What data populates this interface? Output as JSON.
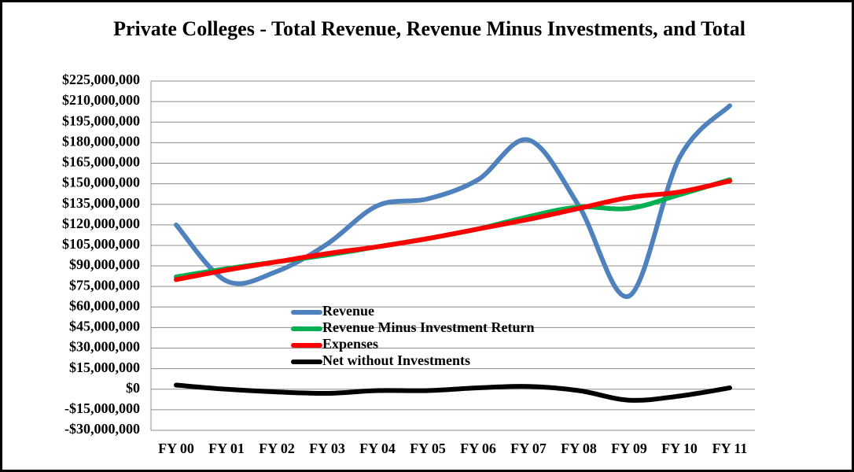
{
  "chart_data": {
    "type": "line",
    "title": "Private Colleges - Total Revenue, Revenue Minus Investments, and Total",
    "categories": [
      "FY 00",
      "FY 01",
      "FY 02",
      "FY 03",
      "FY 04",
      "FY 05",
      "FY 06",
      "FY 07",
      "FY 08",
      "FY 09",
      "FY 10",
      "FY 11"
    ],
    "series": [
      {
        "name": "Revenue",
        "color": "#4f81bd",
        "values": [
          120000000,
          79000000,
          86000000,
          106000000,
          134000000,
          139000000,
          153000000,
          182000000,
          134000000,
          68000000,
          169000000,
          207000000
        ]
      },
      {
        "name": "Revenue Minus Investment Return",
        "color": "#00b050",
        "values": [
          82000000,
          88000000,
          93000000,
          98000000,
          104000000,
          110000000,
          117000000,
          126000000,
          133000000,
          132000000,
          142000000,
          153000000
        ]
      },
      {
        "name": "Expenses",
        "color": "#ff0000",
        "values": [
          80000000,
          87000000,
          93000000,
          99000000,
          104000000,
          110000000,
          117000000,
          124000000,
          132000000,
          140000000,
          144000000,
          152000000
        ]
      },
      {
        "name": "Net without Investments",
        "color": "#000000",
        "values": [
          3000000,
          0,
          -2000000,
          -3000000,
          -1000000,
          -1000000,
          1000000,
          2000000,
          -1000000,
          -8000000,
          -5000000,
          1000000
        ]
      }
    ],
    "ylim": [
      -30000000,
      225000000
    ],
    "yticks": [
      {
        "value": -30000000,
        "label": "-$30,000,000"
      },
      {
        "value": -15000000,
        "label": "-$15,000,000"
      },
      {
        "value": 0,
        "label": "$0"
      },
      {
        "value": 15000000,
        "label": "$15,000,000"
      },
      {
        "value": 30000000,
        "label": "$30,000,000"
      },
      {
        "value": 45000000,
        "label": "$45,000,000"
      },
      {
        "value": 60000000,
        "label": "$60,000,000"
      },
      {
        "value": 75000000,
        "label": "$75,000,000"
      },
      {
        "value": 90000000,
        "label": "$90,000,000"
      },
      {
        "value": 105000000,
        "label": "$105,000,000"
      },
      {
        "value": 120000000,
        "label": "$120,000,000"
      },
      {
        "value": 135000000,
        "label": "$135,000,000"
      },
      {
        "value": 150000000,
        "label": "$150,000,000"
      },
      {
        "value": 165000000,
        "label": "$165,000,000"
      },
      {
        "value": 180000000,
        "label": "$180,000,000"
      },
      {
        "value": 195000000,
        "label": "$195,000,000"
      },
      {
        "value": 210000000,
        "label": "$210,000,000"
      },
      {
        "value": 225000000,
        "label": "$225,000,000"
      }
    ],
    "grid": true,
    "smooth": true
  }
}
